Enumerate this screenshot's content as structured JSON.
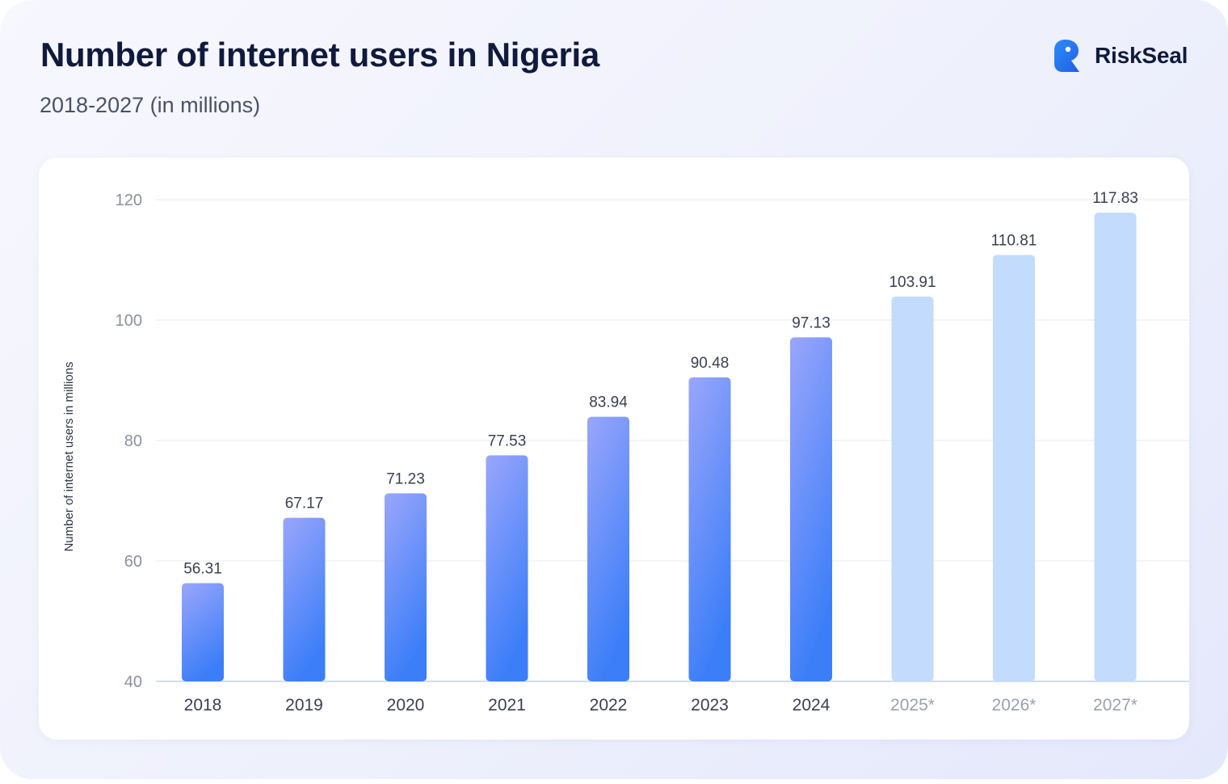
{
  "header": {
    "title": "Number of internet users in Nigeria",
    "subtitle": "2018-2027 (in millions)"
  },
  "brand": {
    "name": "RiskSeal",
    "icon": "riskseal-logo-icon"
  },
  "chart_data": {
    "type": "bar",
    "categories": [
      "2018",
      "2019",
      "2020",
      "2021",
      "2022",
      "2023",
      "2024",
      "2025*",
      "2026*",
      "2027*"
    ],
    "values": [
      56.31,
      67.17,
      71.23,
      77.53,
      83.94,
      90.48,
      97.13,
      103.91,
      110.81,
      117.83
    ],
    "value_labels": [
      "56.31",
      "67.17",
      "71.23",
      "77.53",
      "83.94",
      "90.48",
      "97.13",
      "103.91",
      "110.81",
      "117.83"
    ],
    "forecast": [
      false,
      false,
      false,
      false,
      false,
      false,
      false,
      true,
      true,
      true
    ],
    "ylabel": "Number of internet users in millions",
    "ylim": [
      40,
      120
    ],
    "yticks": [
      40,
      60,
      80,
      100,
      120
    ],
    "grid": true,
    "colors": {
      "actual_top": "#9aa6fb",
      "actual_bottom": "#3c7ef8",
      "forecast": "#c3dbfc",
      "grid": "#eef0f6",
      "axis": "#cfdcf5",
      "tick_label": "#8a8f9e",
      "value_label": "#3a3f52",
      "category_label": "#3a3f52",
      "forecast_label": "#9aa0ae"
    }
  }
}
